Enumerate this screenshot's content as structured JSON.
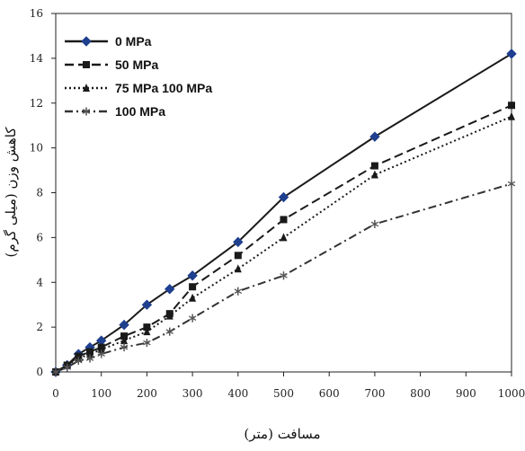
{
  "chart_data": {
    "type": "line",
    "xlabel": "مسافت (متر)",
    "ylabel": "کاهش وزن (میلی گرم)",
    "xlim": [
      0,
      1000
    ],
    "ylim": [
      0,
      16
    ],
    "x_ticks": [
      "0",
      "100",
      "200",
      "300",
      "400",
      "500",
      "600",
      "700",
      "800",
      "900",
      "1000"
    ],
    "y_ticks": [
      "0",
      "2",
      "4",
      "6",
      "8",
      "10",
      "12",
      "14",
      "16"
    ],
    "grid": false,
    "legend_position": "top-left",
    "series": [
      {
        "name": "0 MPa",
        "marker": "diamond",
        "line_style": "solid",
        "color": "#1a1a1a",
        "marker_color": "#1f3f8f",
        "points": [
          [
            0,
            0
          ],
          [
            25,
            0.3
          ],
          [
            50,
            0.8
          ],
          [
            75,
            1.1
          ],
          [
            100,
            1.4
          ],
          [
            150,
            2.1
          ],
          [
            200,
            3.0
          ],
          [
            250,
            3.7
          ],
          [
            300,
            4.3
          ],
          [
            400,
            5.8
          ],
          [
            500,
            7.8
          ],
          [
            700,
            10.5
          ],
          [
            1000,
            14.2
          ]
        ]
      },
      {
        "name": "50 MPa",
        "marker": "square",
        "line_style": "dashed",
        "color": "#1a1a1a",
        "marker_color": "#1a1a1a",
        "points": [
          [
            0,
            0
          ],
          [
            25,
            0.3
          ],
          [
            50,
            0.7
          ],
          [
            75,
            0.9
          ],
          [
            100,
            1.1
          ],
          [
            150,
            1.6
          ],
          [
            200,
            2.0
          ],
          [
            250,
            2.6
          ],
          [
            300,
            3.8
          ],
          [
            400,
            5.2
          ],
          [
            500,
            6.8
          ],
          [
            700,
            9.2
          ],
          [
            1000,
            11.9
          ]
        ]
      },
      {
        "name": "75 MPa 100 MPa",
        "marker": "triangle",
        "line_style": "dotted",
        "color": "#1a1a1a",
        "marker_color": "#1a1a1a",
        "points": [
          [
            0,
            0
          ],
          [
            25,
            0.3
          ],
          [
            50,
            0.6
          ],
          [
            75,
            0.8
          ],
          [
            100,
            1.0
          ],
          [
            150,
            1.4
          ],
          [
            200,
            1.8
          ],
          [
            250,
            2.5
          ],
          [
            300,
            3.3
          ],
          [
            400,
            4.6
          ],
          [
            500,
            6.0
          ],
          [
            700,
            8.8
          ],
          [
            1000,
            11.4
          ]
        ]
      },
      {
        "name": "100 MPa",
        "marker": "asterisk",
        "line_style": "dash-dot",
        "color": "#333333",
        "marker_color": "#555555",
        "points": [
          [
            0,
            0
          ],
          [
            25,
            0.2
          ],
          [
            50,
            0.5
          ],
          [
            75,
            0.6
          ],
          [
            100,
            0.8
          ],
          [
            150,
            1.1
          ],
          [
            200,
            1.3
          ],
          [
            250,
            1.8
          ],
          [
            300,
            2.4
          ],
          [
            400,
            3.6
          ],
          [
            500,
            4.3
          ],
          [
            700,
            6.6
          ],
          [
            1000,
            8.4
          ]
        ]
      }
    ]
  }
}
